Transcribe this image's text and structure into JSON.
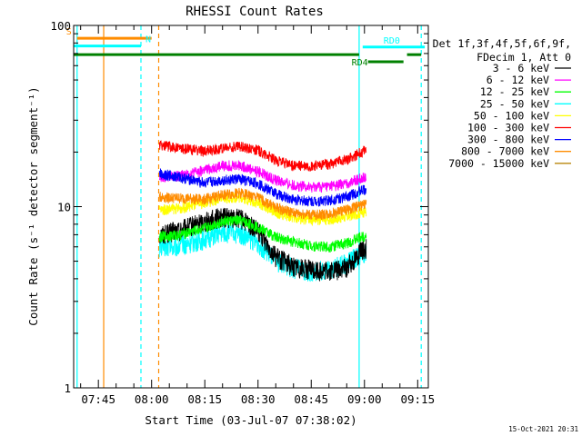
{
  "chart_data": {
    "type": "line",
    "title": "RHESSI Count Rates",
    "xlabel": "Start Time (03-Jul-07 07:38:02)",
    "ylabel": "Count Rate (s⁻¹ detector segment⁻¹)",
    "y_scale": "log",
    "ylim": [
      1,
      100
    ],
    "y_ticks": [
      {
        "value": 1,
        "label": "1"
      },
      {
        "value": 10,
        "label": "10"
      },
      {
        "value": 100,
        "label": "100"
      }
    ],
    "xlim": [
      "07:38:02",
      "09:18:00"
    ],
    "x_ticks": [
      "07:45",
      "08:00",
      "08:15",
      "08:30",
      "08:45",
      "09:00",
      "09:15"
    ],
    "grid": false,
    "data_window": [
      "08:02:10",
      "09:00:30"
    ],
    "legend": {
      "placement": "right",
      "header": [
        "Det 1f,3f,4f,5f,6f,9f,",
        "FDecim 1, Att 0"
      ]
    },
    "series": [
      {
        "name": "3 - 6 keV",
        "color": "#000000",
        "x": [
          "08:02",
          "08:08",
          "08:15",
          "08:20",
          "08:25",
          "08:30",
          "08:35",
          "08:40",
          "08:45",
          "08:50",
          "08:55",
          "09:00"
        ],
        "values": [
          7.0,
          7.4,
          8.3,
          8.8,
          8.6,
          7.3,
          5.3,
          4.7,
          4.5,
          4.4,
          4.6,
          5.9
        ]
      },
      {
        "name": "6 - 12 keV",
        "color": "#ff00ff",
        "x": [
          "08:02",
          "08:08",
          "08:15",
          "08:20",
          "08:25",
          "08:30",
          "08:35",
          "08:40",
          "08:45",
          "08:50",
          "08:55",
          "09:00"
        ],
        "values": [
          14.5,
          14.8,
          15.9,
          16.8,
          16.9,
          15.7,
          14.0,
          13.1,
          12.8,
          12.9,
          13.4,
          14.6
        ]
      },
      {
        "name": "12 - 25 keV",
        "color": "#00ff00",
        "x": [
          "08:02",
          "08:08",
          "08:15",
          "08:20",
          "08:25",
          "08:30",
          "08:35",
          "08:40",
          "08:45",
          "08:50",
          "08:55",
          "09:00"
        ],
        "values": [
          6.8,
          7.0,
          7.6,
          8.3,
          8.4,
          7.7,
          6.8,
          6.4,
          6.1,
          6.0,
          6.3,
          6.9
        ]
      },
      {
        "name": "25 - 50 keV",
        "color": "#00ffff",
        "x": [
          "08:02",
          "08:08",
          "08:15",
          "08:20",
          "08:25",
          "08:30",
          "08:35",
          "08:40",
          "08:45",
          "08:50",
          "08:55",
          "09:00"
        ],
        "values": [
          6.0,
          6.1,
          6.6,
          7.2,
          7.1,
          6.3,
          5.0,
          4.6,
          4.4,
          4.5,
          4.9,
          5.6
        ]
      },
      {
        "name": "50 - 100 keV",
        "color": "#ffff00",
        "x": [
          "08:02",
          "08:08",
          "08:15",
          "08:20",
          "08:25",
          "08:30",
          "08:35",
          "08:40",
          "08:45",
          "08:50",
          "08:55",
          "09:00"
        ],
        "values": [
          9.6,
          9.8,
          10.5,
          11.1,
          11.3,
          10.5,
          9.3,
          8.7,
          8.4,
          8.5,
          8.8,
          9.4
        ]
      },
      {
        "name": "100 - 300 keV",
        "color": "#ff0000",
        "x": [
          "08:02",
          "08:08",
          "08:15",
          "08:20",
          "08:25",
          "08:30",
          "08:35",
          "08:40",
          "08:45",
          "08:50",
          "08:55",
          "09:00"
        ],
        "values": [
          22.0,
          21.0,
          20.3,
          21.0,
          21.6,
          20.5,
          18.0,
          16.8,
          16.7,
          17.2,
          18.2,
          20.3
        ]
      },
      {
        "name": "300 - 800 keV",
        "color": "#0000ff",
        "x": [
          "08:02",
          "08:08",
          "08:15",
          "08:20",
          "08:25",
          "08:30",
          "08:35",
          "08:40",
          "08:45",
          "08:50",
          "08:55",
          "09:00"
        ],
        "values": [
          15.3,
          14.5,
          13.5,
          14.0,
          14.2,
          13.4,
          11.8,
          10.9,
          10.7,
          10.8,
          11.4,
          12.4
        ]
      },
      {
        "name": "800 - 7000 keV",
        "color": "#ff8c00",
        "x": [
          "08:02",
          "08:08",
          "08:15",
          "08:20",
          "08:25",
          "08:30",
          "08:35",
          "08:40",
          "08:45",
          "08:50",
          "08:55",
          "09:00"
        ],
        "values": [
          11.3,
          11.1,
          11.0,
          11.6,
          11.9,
          11.2,
          9.9,
          9.2,
          9.0,
          9.1,
          9.6,
          10.3
        ]
      },
      {
        "name": "7000 - 15000 keV",
        "color": "#b8860b",
        "x": [],
        "values": []
      }
    ],
    "annotations": [
      {
        "label": "S",
        "color": "#ff8c00",
        "value": 85,
        "x_start": "07:39:00",
        "x_end": "08:00:00"
      },
      {
        "label": "N",
        "color": "#00ffff",
        "value": 77,
        "x_start": "07:38:02",
        "x_end": "07:57:00"
      },
      {
        "label": "RD0",
        "color": "#00ffff",
        "value": 76,
        "x_start": "08:59:30",
        "x_end": "09:17:00"
      },
      {
        "label": "RD4",
        "color": "#008000",
        "value": 63,
        "x_start": "09:01:00",
        "x_end": "09:11:00"
      },
      {
        "label": "",
        "color": "#008000",
        "value": 69,
        "x_start": "07:38:02",
        "x_end": "08:58:30"
      },
      {
        "label": "",
        "color": "#008000",
        "value": 69,
        "x_start": "09:12:00",
        "x_end": "09:16:00"
      }
    ],
    "vertical_markers": [
      {
        "x": "07:39:00",
        "color": "#00ffff",
        "style": "solid"
      },
      {
        "x": "07:46:30",
        "color": "#ff8c00",
        "style": "solid"
      },
      {
        "x": "07:57:00",
        "color": "#00ffff",
        "style": "dashed"
      },
      {
        "x": "08:02:00",
        "color": "#ff8c00",
        "style": "dashed"
      },
      {
        "x": "08:58:30",
        "color": "#00ffff",
        "style": "solid"
      },
      {
        "x": "09:16:00",
        "color": "#00ffff",
        "style": "dashed"
      }
    ]
  },
  "timestamp": "15-Oct-2021 20:31"
}
